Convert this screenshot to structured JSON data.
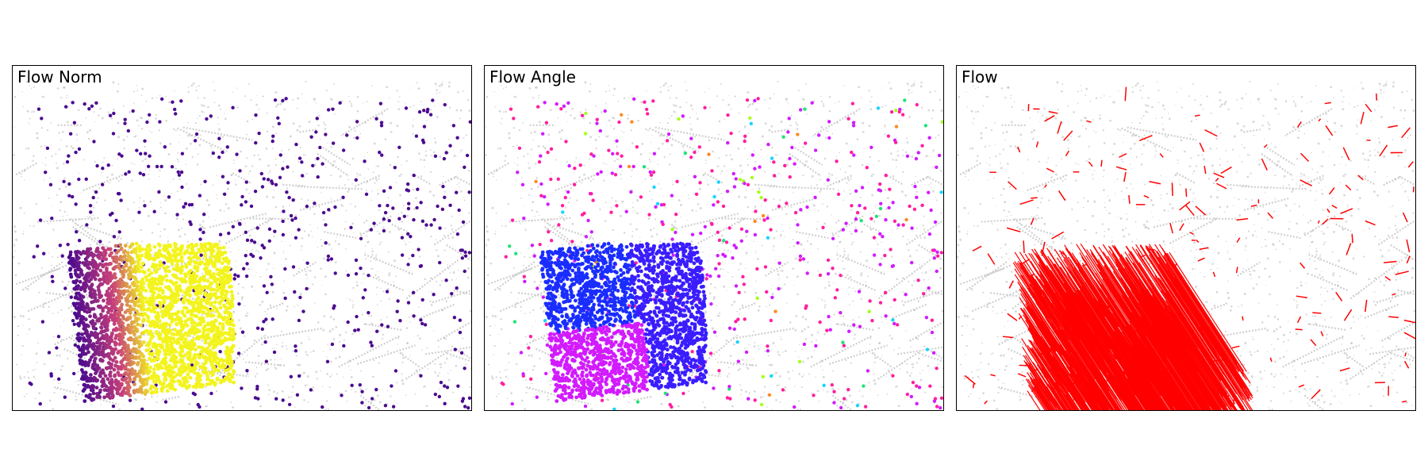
{
  "panels": [
    {
      "id": "norm",
      "title": "Flow Norm",
      "mode": "norm"
    },
    {
      "id": "angle",
      "title": "Flow Angle",
      "mode": "angle"
    },
    {
      "id": "flow",
      "title": "Flow",
      "mode": "flow"
    }
  ],
  "colors": {
    "background_points": "#b8b8b8",
    "norm_low": "#4b0a8f",
    "norm_mid": "#c8407a",
    "norm_high": "#f3f41e",
    "angle_blue": "#1a2dff",
    "angle_magenta": "#d21bff",
    "angle_pink": "#ff1fa0",
    "angle_green": "#22e27a",
    "flow_vectors": "#ff0000",
    "frame": "#000000"
  }
}
